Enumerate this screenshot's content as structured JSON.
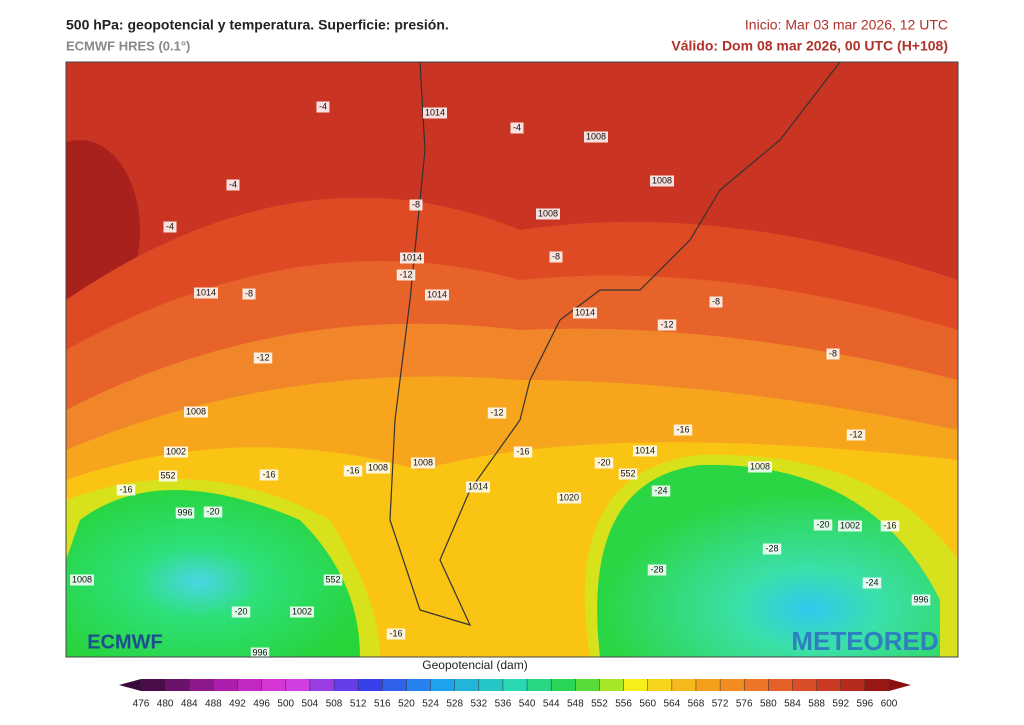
{
  "header": {
    "title": "500 hPa: geopotencial y temperatura. Superficie: presión.",
    "model": "ECMWF HRES (0.1°)",
    "init": "Inicio: Mar 03 mar 2026, 12 UTC",
    "valid": "Válido: Dom 08 mar 2026, 00 UTC (H+108)"
  },
  "map": {
    "labels": [
      "-4",
      "-4",
      "-4",
      "1014",
      "-8",
      "-12",
      "1008",
      "1002",
      "-16",
      "-16",
      "-16",
      "996",
      "-20",
      "1008",
      "-20",
      "1002",
      "996",
      "-16",
      "1008",
      "1008",
      "1014",
      "-12",
      "-16",
      "1020",
      "-20",
      "1014",
      "-16",
      "1008",
      "-24",
      "-28",
      "-28",
      "-20",
      "1002",
      "-16",
      "-24",
      "996",
      "-12",
      "-8",
      "-8",
      "-12",
      "1014",
      "-8",
      "1008",
      "1008",
      "1008",
      "-8",
      "-12",
      "1014",
      "1014",
      "1014",
      "-4",
      "552",
      "552",
      "552"
    ],
    "logos": {
      "left": "ECMWF",
      "right": "METEORED"
    }
  },
  "colorbar": {
    "title": "Geopotencial (dam)",
    "ticks": [
      476,
      480,
      484,
      488,
      492,
      496,
      500,
      504,
      508,
      512,
      516,
      520,
      524,
      528,
      532,
      536,
      540,
      544,
      548,
      552,
      556,
      560,
      564,
      568,
      572,
      576,
      580,
      584,
      588,
      592,
      596,
      600
    ]
  }
}
